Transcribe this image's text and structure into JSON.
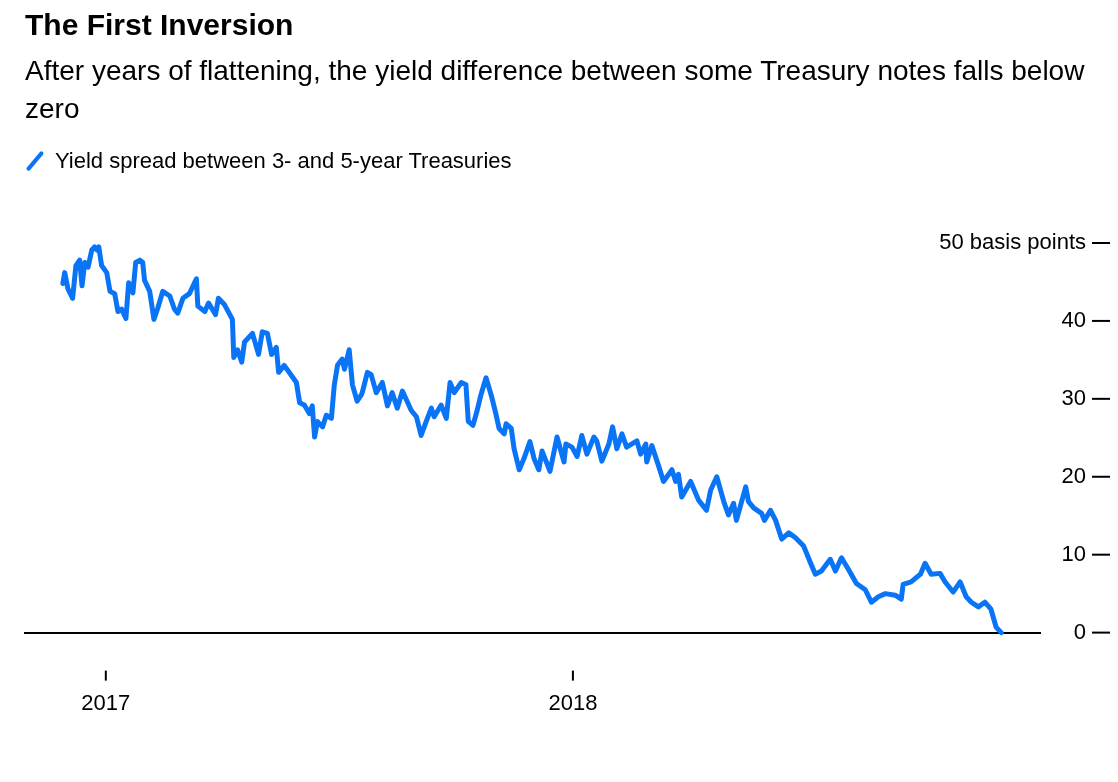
{
  "chart_data": {
    "type": "line",
    "title": "The First Inversion",
    "subtitle": "After years of flattening, the yield difference between some Treasury notes falls below zero",
    "legend": "top left",
    "grid": false,
    "marker": "none",
    "line_style": "solid",
    "xlim": [
      2016.827,
      2019.0
    ],
    "xticks": [
      2017,
      2018
    ],
    "ylim": [
      0,
      50
    ],
    "yticks": [
      0,
      10,
      20,
      30,
      40,
      {
        "value": 50,
        "label": "50 basis points"
      }
    ],
    "series": [
      {
        "name": "Yield spread between 3- and 5-year Treasuries",
        "color": "#0a74f7",
        "x": [
          2016.908,
          2016.912,
          2016.919,
          2016.929,
          2016.936,
          2016.944,
          2016.949,
          2016.955,
          2016.962,
          2016.97,
          2016.976,
          2016.981,
          2016.985,
          2016.991,
          2017.002,
          2017.009,
          2017.019,
          2017.026,
          2017.034,
          2017.043,
          2017.049,
          2017.058,
          2017.064,
          2017.073,
          2017.079,
          2017.083,
          2017.094,
          2017.103,
          2017.111,
          2017.122,
          2017.137,
          2017.147,
          2017.154,
          2017.165,
          2017.179,
          2017.194,
          2017.197,
          2017.212,
          2017.22,
          2017.235,
          2017.241,
          2017.254,
          2017.271,
          2017.274,
          2017.282,
          2017.291,
          2017.297,
          2017.314,
          2017.327,
          2017.335,
          2017.346,
          2017.355,
          2017.365,
          2017.37,
          2017.382,
          2017.408,
          2017.415,
          2017.425,
          2017.436,
          2017.442,
          2017.447,
          2017.453,
          2017.464,
          2017.472,
          2017.483,
          2017.489,
          2017.496,
          2017.506,
          2017.511,
          2017.521,
          2017.528,
          2017.538,
          2017.547,
          2017.549,
          2017.56,
          2017.568,
          2017.579,
          2017.592,
          2017.603,
          2017.613,
          2017.624,
          2017.635,
          2017.654,
          2017.665,
          2017.675,
          2017.686,
          2017.697,
          2017.703,
          2017.718,
          2017.729,
          2017.737,
          2017.746,
          2017.761,
          2017.771,
          2017.776,
          2017.786,
          2017.795,
          2017.803,
          2017.814,
          2017.825,
          2017.835,
          2017.842,
          2017.853,
          2017.857,
          2017.868,
          2017.874,
          2017.885,
          2017.895,
          2017.908,
          2017.917,
          2017.927,
          2017.934,
          2017.951,
          2017.966,
          2017.981,
          2017.985,
          2017.998,
          2018.009,
          2018.019,
          2018.03,
          2018.045,
          2018.051,
          2018.062,
          2018.077,
          2018.085,
          2018.094,
          2018.105,
          2018.115,
          2018.137,
          2018.145,
          2018.156,
          2018.158,
          2018.169,
          2018.184,
          2018.194,
          2018.212,
          2018.22,
          2018.226,
          2018.233,
          2018.252,
          2018.269,
          2018.286,
          2018.295,
          2018.308,
          2018.323,
          2018.333,
          2018.344,
          2018.35,
          2018.37,
          2018.376,
          2018.387,
          2018.404,
          2018.41,
          2018.423,
          2018.434,
          2018.447,
          2018.462,
          2018.476,
          2018.494,
          2018.509,
          2018.519,
          2018.532,
          2018.551,
          2018.562,
          2018.575,
          2018.59,
          2018.607,
          2018.626,
          2018.639,
          2018.654,
          2018.669,
          2018.69,
          2018.703,
          2018.707,
          2018.724,
          2018.744,
          2018.754,
          2018.767,
          2018.786,
          2018.797,
          2018.814,
          2018.829,
          2018.842,
          2018.853,
          2018.868,
          2018.882,
          2018.895,
          2018.906,
          2018.917
        ],
        "values": [
          44.8,
          46.2,
          44.1,
          42.9,
          47.1,
          47.8,
          44.5,
          47.5,
          46.9,
          49.1,
          49.5,
          49.1,
          49.5,
          47.1,
          46.2,
          43.8,
          43.5,
          41.2,
          41.5,
          40.3,
          44.9,
          43.6,
          47.5,
          47.8,
          47.5,
          45.2,
          43.8,
          40.2,
          41.6,
          43.8,
          43.2,
          41.5,
          41.0,
          42.9,
          43.5,
          45.4,
          41.9,
          41.2,
          42.3,
          40.8,
          42.9,
          42.1,
          40.2,
          35.3,
          36.3,
          34.7,
          37.3,
          38.4,
          35.7,
          38.6,
          38.4,
          35.7,
          36.6,
          33.4,
          34.3,
          32.1,
          29.5,
          29.2,
          28.1,
          29.1,
          25.1,
          27.1,
          26.4,
          27.9,
          27.5,
          31.7,
          34.3,
          35.1,
          33.8,
          36.3,
          31.8,
          29.7,
          30.5,
          30.8,
          33.4,
          33.1,
          30.8,
          32.1,
          29.1,
          30.8,
          28.8,
          31.0,
          28.5,
          27.7,
          25.3,
          27.1,
          28.8,
          27.7,
          29.2,
          27.5,
          32.1,
          30.8,
          32.1,
          31.8,
          27.1,
          26.6,
          28.5,
          30.5,
          32.7,
          30.5,
          28.1,
          26.2,
          25.5,
          26.8,
          26.2,
          23.6,
          20.9,
          22.3,
          24.5,
          22.3,
          20.9,
          23.3,
          20.7,
          25.1,
          21.9,
          24.2,
          23.8,
          22.6,
          25.3,
          22.9,
          25.1,
          24.6,
          22.0,
          24.2,
          26.4,
          23.6,
          25.5,
          23.8,
          24.6,
          22.9,
          24.2,
          21.9,
          24.0,
          21.3,
          19.4,
          20.9,
          19.4,
          20.3,
          17.4,
          19.4,
          17.0,
          15.7,
          18.3,
          20.0,
          16.8,
          15.1,
          16.6,
          14.4,
          18.7,
          16.8,
          16.0,
          15.3,
          14.4,
          15.7,
          14.4,
          12.0,
          12.8,
          12.2,
          11.1,
          8.9,
          7.5,
          7.9,
          9.4,
          7.9,
          9.6,
          8.1,
          6.3,
          5.5,
          3.9,
          4.6,
          5.0,
          4.8,
          4.3,
          6.2,
          6.5,
          7.5,
          8.9,
          7.5,
          7.6,
          6.5,
          5.2,
          6.5,
          4.6,
          3.9,
          3.3,
          3.9,
          3.0,
          0.7,
          0.0
        ]
      }
    ]
  }
}
